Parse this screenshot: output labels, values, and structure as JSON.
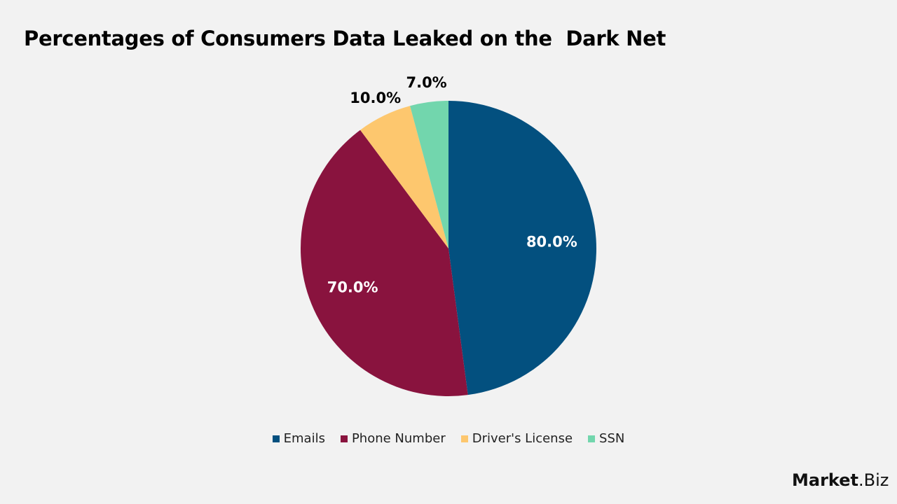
{
  "chart_data": {
    "type": "pie",
    "title": "Percentages of Consumers Data Leaked on the  Dark Net",
    "categories": [
      "Emails",
      "Phone Number",
      "Driver's License",
      "SSN"
    ],
    "values": [
      80.0,
      70.0,
      10.0,
      7.0
    ],
    "labels": [
      "80.0%",
      "70.0%",
      "10.0%",
      "7.0%"
    ],
    "colors": [
      "#03507f",
      "#89133e",
      "#fdc76e",
      "#72d6ad"
    ],
    "legend_position": "bottom"
  },
  "legend": [
    {
      "label": "Emails",
      "color": "#03507f"
    },
    {
      "label": "Phone Number",
      "color": "#89133e"
    },
    {
      "label": "Driver's License",
      "color": "#fdc76e"
    },
    {
      "label": "SSN",
      "color": "#72d6ad"
    }
  ],
  "logo": {
    "main": "Market",
    "suffix": ".Biz"
  }
}
